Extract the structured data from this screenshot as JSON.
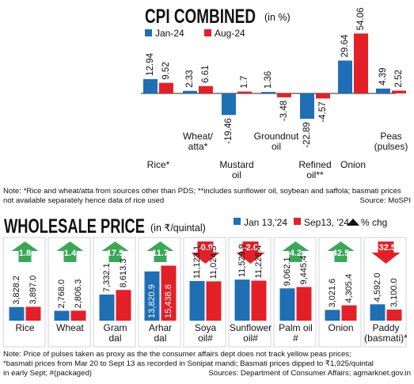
{
  "cpi": {
    "title": "CPI COMBINED",
    "unit": "(in %)",
    "legend": [
      "Jan-24",
      "Aug-24"
    ],
    "note": "Note: *Rice and wheat/atta from sources other than PDS; **includes sunflower oil, soybean and saffola; basmati prices not available separately hence data of rice used",
    "source": "Source: MoSPI"
  },
  "wholesale": {
    "title": "WHOLESALE PRICE",
    "unit": "(in ₹/quintal)",
    "legend": [
      "Jan 13,'24",
      "Sep13, '24",
      "% chg"
    ],
    "note_lines": [
      "Note: Price of pulses taken as proxy as the the consumer affairs dept does not track yellow peas prices;",
      "*basmati prices from Mar 20 to Sept 13 as recorded in Sonipat mandi; Basmati prices dipped to ₹1,925/quintal",
      "in early Sept; #(packaged)"
    ],
    "source": "Sources: Department of Consumer Affairs; agmarknet.gov.in"
  },
  "colors": {
    "blue": "#1f6fb5",
    "red": "#e32028",
    "green": "#3aa757"
  },
  "chart_data": [
    {
      "type": "bar",
      "title": "CPI COMBINED",
      "categories": [
        "Rice*",
        "Wheat/ atta*",
        "Mustard oil",
        "Groundnut oil",
        "Refined oil**",
        "Onion",
        "Peas (pulses)"
      ],
      "series": [
        {
          "name": "Jan-24",
          "values": [
            12.94,
            2.33,
            -19.46,
            1.36,
            -22.89,
            29.64,
            4.39
          ],
          "labels": [
            "12.94",
            "2.33",
            "-19.46",
            "1.36",
            "-22.89",
            "29.64",
            "4.39"
          ]
        },
        {
          "name": "Aug-24",
          "values": [
            9.52,
            6.61,
            1.7,
            -3.48,
            -4.57,
            54.06,
            2.52
          ],
          "labels": [
            "9.52",
            "6.61",
            "1.7",
            "-3.48",
            "-4.57",
            "54.06",
            "2.52"
          ]
        }
      ],
      "ylabel": "in %",
      "legend": "top-left"
    },
    {
      "type": "bar",
      "title": "WHOLESALE PRICE",
      "categories": [
        "Rice",
        "Wheat",
        "Gram dal",
        "Arhar dal",
        "Soya oil#",
        "Sunflower oil#",
        "Palm oil #",
        "Onion",
        "Paddy (basmati)*"
      ],
      "series": [
        {
          "name": "Jan 13,'24",
          "values": [
            3828.2,
            2768.0,
            7332.1,
            13820.9,
            11123.1,
            11529.9,
            9062.1,
            3021.6,
            4592.0
          ],
          "labels": [
            "3,828.2",
            "2,768.0",
            "7,332.1",
            "13,820.9",
            "11,123.1",
            "11,529.9",
            "9,062.1",
            "3,021.6",
            "4,592.0"
          ]
        },
        {
          "name": "Sep13, '24",
          "values": [
            3897.0,
            2806.3,
            8613.3,
            15438.8,
            11024.5,
            11226.4,
            9445.4,
            4305.4,
            3100.0
          ],
          "labels": [
            "3,897.0",
            "2,806.3",
            "8,613.3",
            "15,438.8",
            "11,024.5",
            "11,226.4",
            "9,445.4",
            "4,305.4",
            "3,100.0"
          ]
        }
      ],
      "pct_change": [
        1.8,
        1.4,
        17.5,
        11.7,
        -0.9,
        -2.6,
        4.2,
        42.5,
        -32.5
      ],
      "pct_change_labels": [
        "1.8",
        "1.4",
        "17.5",
        "11.7",
        "-0.9",
        "-2.6",
        "4.2",
        "42.5",
        "-32.5"
      ],
      "ylabel": "in ₹/quintal",
      "legend": "top-right"
    }
  ]
}
